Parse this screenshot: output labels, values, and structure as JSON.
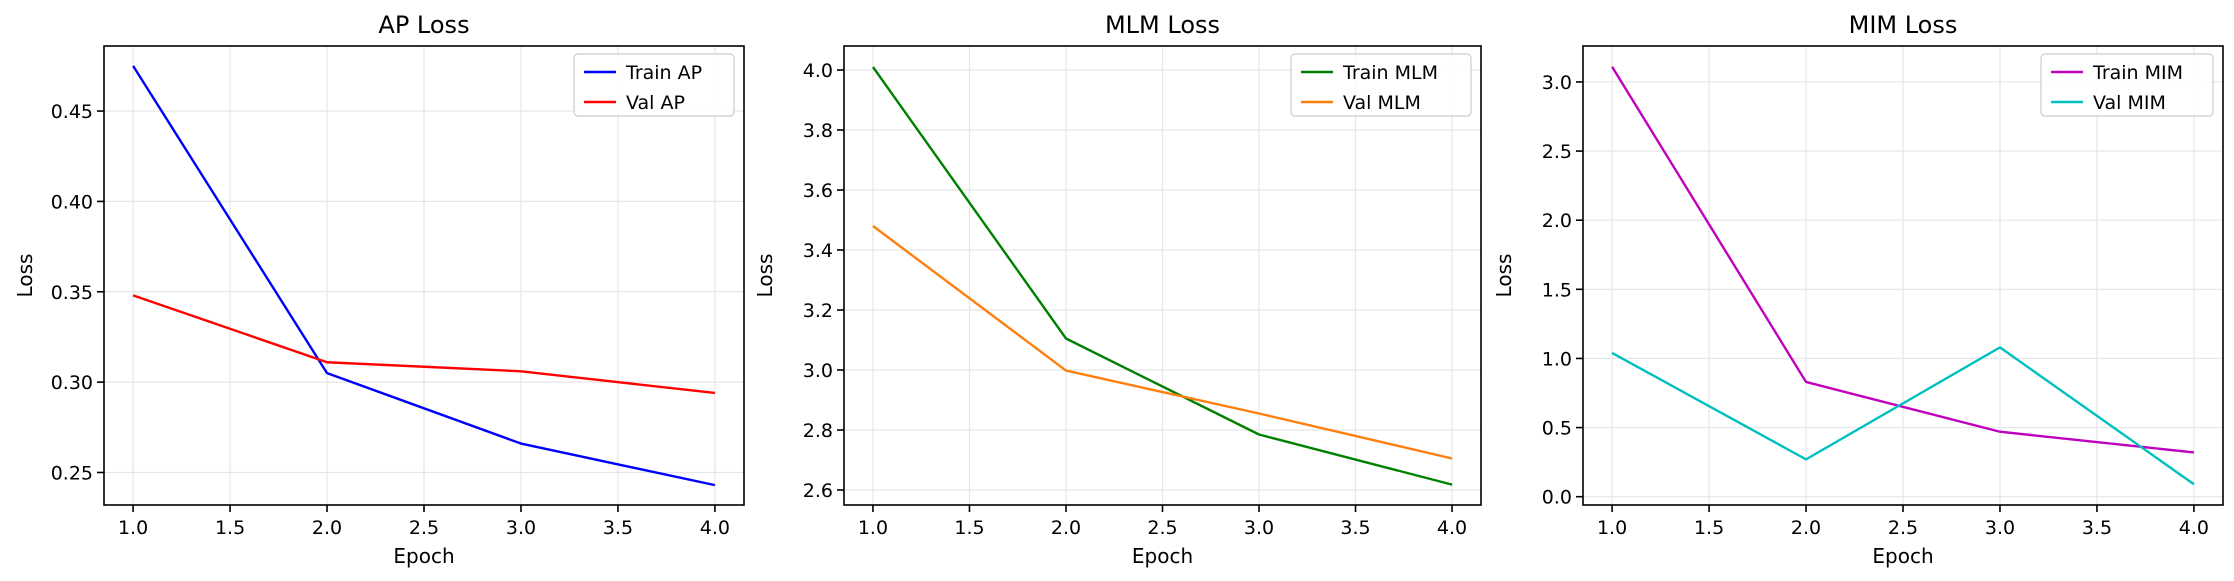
{
  "chart_data": [
    {
      "type": "line",
      "title": "AP Loss",
      "xlabel": "Epoch",
      "ylabel": "Loss",
      "x": [
        1.0,
        2.0,
        3.0,
        4.0
      ],
      "xlim": [
        0.85,
        4.15
      ],
      "ylim": [
        0.232,
        0.486
      ],
      "xticks": [
        "1.0",
        "1.5",
        "2.0",
        "2.5",
        "3.0",
        "3.5",
        "4.0"
      ],
      "yticks": [
        "0.25",
        "0.30",
        "0.35",
        "0.40",
        "0.45"
      ],
      "grid": true,
      "legend_position": "top-right",
      "series": [
        {
          "name": "Train AP",
          "color": "#0000ff",
          "values": [
            0.475,
            0.305,
            0.266,
            0.243
          ]
        },
        {
          "name": "Val AP",
          "color": "#ff0000",
          "values": [
            0.348,
            0.311,
            0.306,
            0.294
          ]
        }
      ]
    },
    {
      "type": "line",
      "title": "MLM Loss",
      "xlabel": "Epoch",
      "ylabel": "Loss",
      "x": [
        1.0,
        2.0,
        3.0,
        4.0
      ],
      "xlim": [
        0.85,
        4.15
      ],
      "ylim": [
        2.55,
        4.08
      ],
      "xticks": [
        "1.0",
        "1.5",
        "2.0",
        "2.5",
        "3.0",
        "3.5",
        "4.0"
      ],
      "yticks": [
        "2.6",
        "2.8",
        "3.0",
        "3.2",
        "3.4",
        "3.6",
        "3.8",
        "4.0"
      ],
      "grid": true,
      "legend_position": "top-right",
      "series": [
        {
          "name": "Train MLM",
          "color": "#008000",
          "values": [
            4.01,
            3.105,
            2.785,
            2.618
          ]
        },
        {
          "name": "Val MLM",
          "color": "#ff7f0e",
          "values": [
            3.48,
            2.998,
            2.855,
            2.705
          ]
        }
      ]
    },
    {
      "type": "line",
      "title": "MIM Loss",
      "xlabel": "Epoch",
      "ylabel": "Loss",
      "x": [
        1.0,
        2.0,
        3.0,
        4.0
      ],
      "xlim": [
        0.85,
        4.15
      ],
      "ylim": [
        -0.06,
        3.26
      ],
      "xticks": [
        "1.0",
        "1.5",
        "2.0",
        "2.5",
        "3.0",
        "3.5",
        "4.0"
      ],
      "yticks": [
        "0.0",
        "0.5",
        "1.0",
        "1.5",
        "2.0",
        "2.5",
        "3.0"
      ],
      "grid": true,
      "legend_position": "top-right",
      "series": [
        {
          "name": "Train MIM",
          "color": "#bf00bf",
          "values": [
            3.11,
            0.83,
            0.47,
            0.32
          ]
        },
        {
          "name": "Val MIM",
          "color": "#00bfbf",
          "values": [
            1.04,
            0.27,
            1.08,
            0.09
          ]
        }
      ]
    }
  ]
}
